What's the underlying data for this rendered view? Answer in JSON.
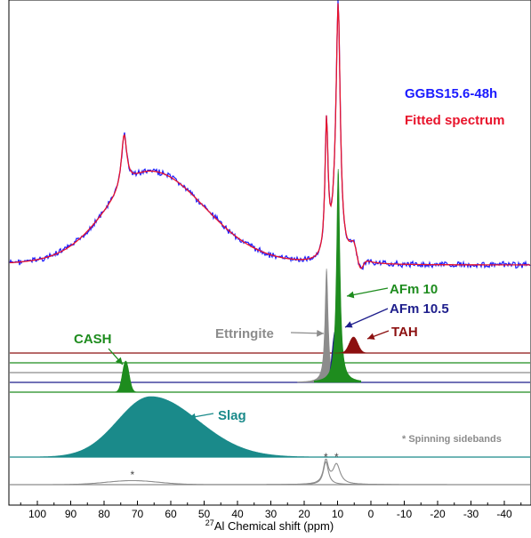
{
  "chart_data": {
    "type": "line",
    "xlabel_sup": "27",
    "xlabel": "Al Chemical shift (ppm)",
    "x_reversed": true,
    "xlim": [
      110,
      -50
    ],
    "xticks": [
      100,
      90,
      80,
      70,
      60,
      50,
      40,
      30,
      20,
      10,
      0,
      -10,
      -20,
      -30,
      -40
    ],
    "legend": [
      {
        "name": "GGBS15.6-48h",
        "color": "#1a1aff"
      },
      {
        "name": "Fitted spectrum",
        "color": "#e8132b"
      }
    ],
    "components": [
      {
        "name": "Ettringite",
        "center_ppm": 13.3,
        "color": "#8c8c8c"
      },
      {
        "name": "AFm 10",
        "center_ppm": 9.8,
        "color": "#1e8c1e"
      },
      {
        "name": "AFm 10.5",
        "center_ppm": 10.7,
        "color": "#1e1e8c"
      },
      {
        "name": "TAH",
        "center_ppm": 5.2,
        "color": "#8c1010"
      },
      {
        "name": "CASH",
        "center_ppm": 73.5,
        "color": "#1e8c1e"
      },
      {
        "name": "Slag",
        "center_ppm": 66,
        "color": "#1a8a8a"
      }
    ],
    "spinning_sidebands": {
      "label": "* Spinning sidebands",
      "positions_ppm": [
        71.5,
        13.5,
        10.3
      ],
      "marker": "*"
    }
  }
}
